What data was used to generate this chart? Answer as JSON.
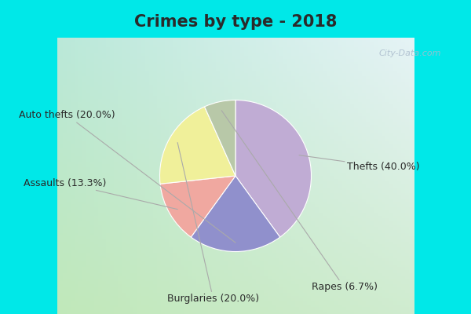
{
  "title": "Crimes by type - 2018",
  "slices": [
    {
      "label": "Thefts (40.0%)",
      "value": 40.0,
      "color": "#c0acd4"
    },
    {
      "label": "Auto thefts (20.0%)",
      "value": 20.0,
      "color": "#9090cc"
    },
    {
      "label": "Assaults (13.3%)",
      "value": 13.3,
      "color": "#f0a8a0"
    },
    {
      "label": "Burglaries (20.0%)",
      "value": 20.0,
      "color": "#f0f09a"
    },
    {
      "label": "Rapes (6.7%)",
      "value": 6.7,
      "color": "#b8c8a8"
    }
  ],
  "title_fontsize": 15,
  "title_color": "#2a2a2a",
  "label_fontsize": 9,
  "label_color": "#2a2a2a",
  "watermark": "City-Data.com",
  "cyan_band_color": "#00e8e8",
  "bg_color_topleft": "#b8e8d8",
  "bg_color_topright": "#e8f4f8",
  "bg_color_bottomleft": "#c8e8c0",
  "bg_color_bottomright": "#d8ecd8"
}
